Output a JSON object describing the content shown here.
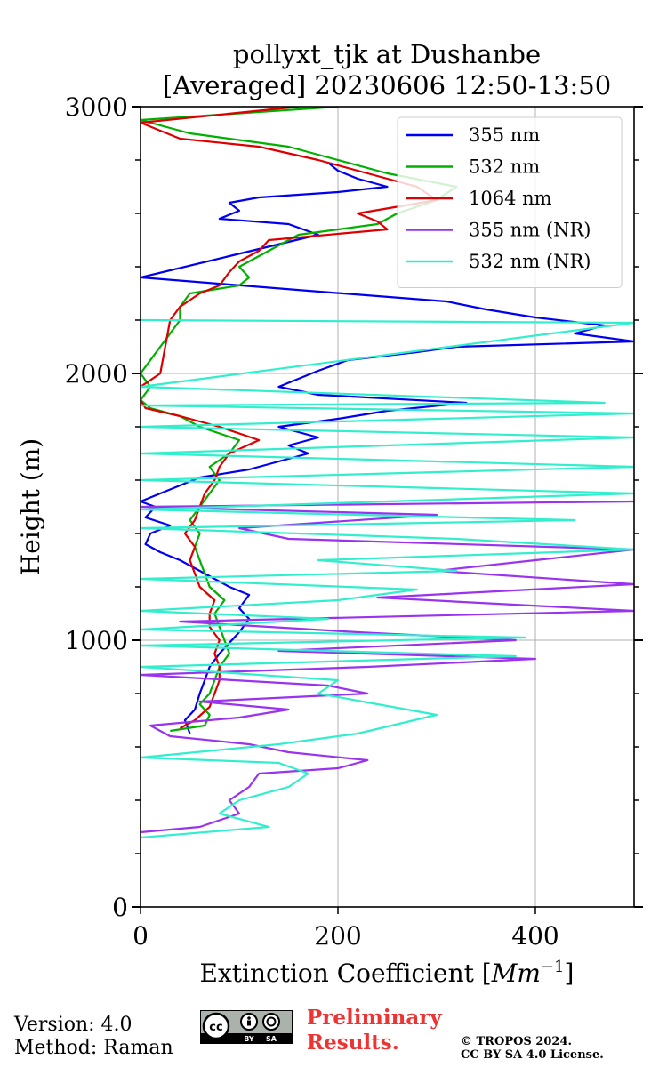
{
  "footer": {
    "version": "Version: 4.0",
    "method": "Method: Raman",
    "preliminary": "Preliminary Results.",
    "copyright_line1": "© TROPOS 2024.",
    "copyright_line2": "CC BY SA 4.0 License.",
    "license_badge_text": [
      "cc",
      "BY",
      "SA"
    ]
  },
  "chart_data": {
    "type": "line",
    "title": "pollyxt_tjk at Dushanbe",
    "subtitle": "[Averaged] 20230606 12:50-13:50",
    "xlabel": "Extinction Coefficient [",
    "xlabel_unit": "Mm",
    "xlabel_exp": "−1",
    "xlabel_close": "]",
    "ylabel": "Height (m)",
    "xlim": [
      0,
      500
    ],
    "ylim": [
      0,
      3000
    ],
    "xticks": [
      0,
      200,
      400
    ],
    "xtick_labels": [
      "0",
      "200",
      "400"
    ],
    "yticks": [
      0,
      1000,
      2000,
      3000
    ],
    "ytick_labels": [
      "0",
      "1000",
      "2000",
      "3000"
    ],
    "y_minor_step": 200,
    "grid": true,
    "legend_position": "top-right",
    "series": [
      {
        "name": "355 nm",
        "color": "#0000ee",
        "points": [
          [
            50,
            650
          ],
          [
            45,
            700
          ],
          [
            55,
            740
          ],
          [
            60,
            800
          ],
          [
            65,
            850
          ],
          [
            70,
            900
          ],
          [
            80,
            950
          ],
          [
            90,
            990
          ],
          [
            100,
            1030
          ],
          [
            110,
            1080
          ],
          [
            100,
            1120
          ],
          [
            110,
            1170
          ],
          [
            90,
            1200
          ],
          [
            60,
            1260
          ],
          [
            40,
            1300
          ],
          [
            20,
            1330
          ],
          [
            5,
            1360
          ],
          [
            10,
            1400
          ],
          [
            30,
            1430
          ],
          [
            5,
            1460
          ],
          [
            15,
            1500
          ],
          [
            0,
            1520
          ],
          [
            20,
            1550
          ],
          [
            40,
            1580
          ],
          [
            60,
            1610
          ],
          [
            110,
            1640
          ],
          [
            140,
            1670
          ],
          [
            170,
            1700
          ],
          [
            150,
            1730
          ],
          [
            180,
            1760
          ],
          [
            140,
            1800
          ],
          [
            200,
            1830
          ],
          [
            250,
            1860
          ],
          [
            330,
            1890
          ],
          [
            180,
            1920
          ],
          [
            140,
            1950
          ],
          [
            160,
            1980
          ],
          [
            180,
            2010
          ],
          [
            210,
            2050
          ],
          [
            280,
            2080
          ],
          [
            320,
            2100
          ],
          [
            500,
            2120
          ],
          [
            440,
            2150
          ],
          [
            470,
            2180
          ],
          [
            400,
            2210
          ],
          [
            350,
            2240
          ],
          [
            310,
            2270
          ],
          [
            170,
            2310
          ],
          [
            0,
            2360
          ],
          [
            180,
            2520
          ],
          [
            150,
            2560
          ],
          [
            80,
            2580
          ],
          [
            100,
            2610
          ],
          [
            90,
            2640
          ],
          [
            120,
            2660
          ],
          [
            200,
            2680
          ],
          [
            250,
            2700
          ],
          [
            220,
            2730
          ],
          [
            200,
            2760
          ],
          [
            190,
            2790
          ]
        ]
      },
      {
        "name": "532 nm",
        "color": "#00b000",
        "points": [
          [
            30,
            660
          ],
          [
            65,
            680
          ],
          [
            70,
            720
          ],
          [
            60,
            760
          ],
          [
            70,
            800
          ],
          [
            75,
            850
          ],
          [
            80,
            900
          ],
          [
            90,
            950
          ],
          [
            85,
            1000
          ],
          [
            80,
            1050
          ],
          [
            75,
            1100
          ],
          [
            85,
            1150
          ],
          [
            70,
            1200
          ],
          [
            65,
            1250
          ],
          [
            60,
            1300
          ],
          [
            55,
            1350
          ],
          [
            60,
            1400
          ],
          [
            50,
            1450
          ],
          [
            60,
            1500
          ],
          [
            70,
            1550
          ],
          [
            80,
            1600
          ],
          [
            70,
            1650
          ],
          [
            90,
            1700
          ],
          [
            100,
            1750
          ],
          [
            60,
            1800
          ],
          [
            40,
            1840
          ],
          [
            10,
            1870
          ],
          [
            0,
            1900
          ],
          [
            10,
            1950
          ],
          [
            0,
            2000
          ],
          [
            40,
            2200
          ],
          [
            40,
            2250
          ],
          [
            50,
            2300
          ],
          [
            100,
            2330
          ],
          [
            110,
            2360
          ],
          [
            100,
            2400
          ],
          [
            120,
            2440
          ],
          [
            140,
            2480
          ],
          [
            160,
            2520
          ],
          [
            200,
            2540
          ],
          [
            240,
            2560
          ],
          [
            260,
            2600
          ],
          [
            300,
            2650
          ],
          [
            320,
            2700
          ],
          [
            250,
            2750
          ],
          [
            200,
            2800
          ],
          [
            150,
            2850
          ],
          [
            50,
            2900
          ],
          [
            0,
            2950
          ],
          [
            200,
            3000
          ]
        ]
      },
      {
        "name": "1064 nm",
        "color": "#dd0000",
        "points": [
          [
            40,
            670
          ],
          [
            55,
            700
          ],
          [
            70,
            750
          ],
          [
            75,
            800
          ],
          [
            80,
            850
          ],
          [
            80,
            900
          ],
          [
            75,
            950
          ],
          [
            80,
            1000
          ],
          [
            70,
            1050
          ],
          [
            70,
            1100
          ],
          [
            75,
            1150
          ],
          [
            60,
            1200
          ],
          [
            55,
            1250
          ],
          [
            50,
            1300
          ],
          [
            55,
            1350
          ],
          [
            45,
            1400
          ],
          [
            55,
            1450
          ],
          [
            60,
            1500
          ],
          [
            65,
            1550
          ],
          [
            75,
            1600
          ],
          [
            80,
            1650
          ],
          [
            90,
            1700
          ],
          [
            120,
            1750
          ],
          [
            80,
            1800
          ],
          [
            40,
            1840
          ],
          [
            5,
            1870
          ],
          [
            0,
            1900
          ],
          [
            0,
            1950
          ],
          [
            20,
            2000
          ],
          [
            30,
            2200
          ],
          [
            40,
            2250
          ],
          [
            60,
            2300
          ],
          [
            80,
            2330
          ],
          [
            90,
            2380
          ],
          [
            100,
            2420
          ],
          [
            120,
            2460
          ],
          [
            130,
            2500
          ],
          [
            250,
            2540
          ],
          [
            240,
            2570
          ],
          [
            220,
            2600
          ],
          [
            300,
            2650
          ],
          [
            280,
            2700
          ],
          [
            230,
            2750
          ],
          [
            180,
            2800
          ],
          [
            120,
            2850
          ],
          [
            40,
            2880
          ],
          [
            0,
            2940
          ],
          [
            160,
            3000
          ]
        ]
      },
      {
        "name": "355 nm (NR)",
        "color": "#9933ee",
        "points": [
          [
            0,
            280
          ],
          [
            60,
            300
          ],
          [
            100,
            350
          ],
          [
            90,
            400
          ],
          [
            110,
            450
          ],
          [
            120,
            500
          ],
          [
            200,
            520
          ],
          [
            230,
            550
          ],
          [
            150,
            580
          ],
          [
            110,
            610
          ],
          [
            30,
            640
          ],
          [
            10,
            680
          ],
          [
            100,
            710
          ],
          [
            150,
            740
          ],
          [
            60,
            770
          ],
          [
            230,
            800
          ],
          [
            190,
            830
          ],
          [
            0,
            870
          ],
          [
            230,
            900
          ],
          [
            400,
            930
          ],
          [
            140,
            960
          ],
          [
            380,
            1000
          ],
          [
            220,
            1030
          ],
          [
            40,
            1070
          ],
          [
            500,
            1110
          ],
          [
            240,
            1160
          ],
          [
            500,
            1210
          ],
          [
            300,
            1260
          ],
          [
            400,
            1300
          ],
          [
            500,
            1340
          ],
          [
            150,
            1380
          ],
          [
            100,
            1420
          ],
          [
            300,
            1470
          ],
          [
            0,
            1500
          ],
          [
            500,
            1520
          ]
        ]
      },
      {
        "name": "532 nm (NR)",
        "color": "#33eecc",
        "points": [
          [
            0,
            260
          ],
          [
            130,
            300
          ],
          [
            80,
            350
          ],
          [
            100,
            400
          ],
          [
            150,
            450
          ],
          [
            170,
            500
          ],
          [
            140,
            540
          ],
          [
            0,
            560
          ],
          [
            140,
            610
          ],
          [
            220,
            650
          ],
          [
            300,
            720
          ],
          [
            240,
            760
          ],
          [
            180,
            800
          ],
          [
            200,
            850
          ],
          [
            0,
            900
          ],
          [
            380,
            940
          ],
          [
            0,
            980
          ],
          [
            390,
            1010
          ],
          [
            0,
            1040
          ],
          [
            190,
            1080
          ],
          [
            0,
            1110
          ],
          [
            200,
            1150
          ],
          [
            280,
            1190
          ],
          [
            0,
            1230
          ],
          [
            320,
            1260
          ],
          [
            180,
            1300
          ],
          [
            500,
            1340
          ],
          [
            320,
            1380
          ],
          [
            0,
            1420
          ],
          [
            440,
            1450
          ],
          [
            0,
            1490
          ],
          [
            500,
            1550
          ],
          [
            0,
            1600
          ],
          [
            500,
            1650
          ],
          [
            0,
            1700
          ],
          [
            500,
            1760
          ],
          [
            0,
            1800
          ],
          [
            500,
            1850
          ],
          [
            0,
            1880
          ],
          [
            470,
            1890
          ],
          [
            0,
            1950
          ],
          [
            500,
            2190
          ],
          [
            0,
            2200
          ]
        ]
      }
    ]
  }
}
